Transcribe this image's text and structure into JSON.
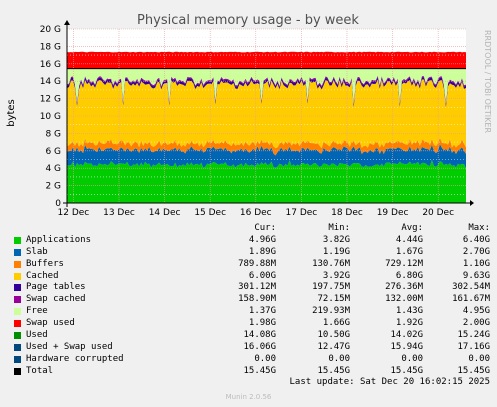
{
  "chart_data": {
    "type": "area",
    "title": "Physical memory usage - by week",
    "ylabel": "bytes",
    "side_label": "RRDTOOL / TOBI OETIKER",
    "ylim": [
      0,
      20
    ],
    "y_unit": "G",
    "y_ticks": [
      "0",
      "2 G",
      "4 G",
      "6 G",
      "8 G",
      "10 G",
      "12 G",
      "14 G",
      "16 G",
      "18 G",
      "20 G"
    ],
    "x_labels": [
      "12 Dec",
      "13 Dec",
      "14 Dec",
      "15 Dec",
      "16 Dec",
      "17 Dec",
      "18 Dec",
      "19 Dec",
      "20 Dec"
    ],
    "approx_series_G": {
      "applications": 4.4,
      "slab": 1.7,
      "buffers": 0.73,
      "cached": 6.8,
      "page_tables": 0.28,
      "swap_cached": 0.13,
      "free": 1.4,
      "swap_used": 1.9,
      "total": 15.45
    },
    "colors": {
      "applications": "#00cc00",
      "slab": "#0066b3",
      "buffers": "#ff8000",
      "cached": "#ffcc00",
      "page_tables": "#330099",
      "swap_cached": "#990099",
      "free": "#ccff99",
      "swap_used": "#ff0000",
      "used": "#008f00",
      "used_swap": "#00487d",
      "hardware_corrupted": "#00487d",
      "total": "#000000"
    }
  },
  "legend": {
    "headers": {
      "cur": "Cur:",
      "min": "Min:",
      "avg": "Avg:",
      "max": "Max:"
    },
    "rows": [
      {
        "name": "Applications",
        "color": "#00cc00",
        "cur": "4.96G",
        "min": "3.82G",
        "avg": "4.44G",
        "max": "6.40G"
      },
      {
        "name": "Slab",
        "color": "#0066b3",
        "cur": "1.89G",
        "min": "1.19G",
        "avg": "1.67G",
        "max": "2.70G"
      },
      {
        "name": "Buffers",
        "color": "#ff8000",
        "cur": "789.88M",
        "min": "130.76M",
        "avg": "729.12M",
        "max": "1.10G"
      },
      {
        "name": "Cached",
        "color": "#ffcc00",
        "cur": "6.00G",
        "min": "3.92G",
        "avg": "6.80G",
        "max": "9.63G"
      },
      {
        "name": "Page tables",
        "color": "#330099",
        "cur": "301.12M",
        "min": "197.75M",
        "avg": "276.36M",
        "max": "302.54M"
      },
      {
        "name": "Swap cached",
        "color": "#990099",
        "cur": "158.90M",
        "min": "72.15M",
        "avg": "132.00M",
        "max": "161.67M"
      },
      {
        "name": "Free",
        "color": "#ccff99",
        "cur": "1.37G",
        "min": "219.93M",
        "avg": "1.43G",
        "max": "4.95G"
      },
      {
        "name": "Swap used",
        "color": "#ff0000",
        "cur": "1.98G",
        "min": "1.66G",
        "avg": "1.92G",
        "max": "2.00G"
      },
      {
        "name": "Used",
        "color": "#008f00",
        "cur": "14.08G",
        "min": "10.50G",
        "avg": "14.02G",
        "max": "15.24G"
      },
      {
        "name": "Used + Swap used",
        "color": "#00487d",
        "cur": "16.06G",
        "min": "12.47G",
        "avg": "15.94G",
        "max": "17.16G"
      },
      {
        "name": "Hardware corrupted",
        "color": "#00487d",
        "cur": "0.00",
        "min": "0.00",
        "avg": "0.00",
        "max": "0.00"
      },
      {
        "name": "Total",
        "color": "#000000",
        "cur": "15.45G",
        "min": "15.45G",
        "avg": "15.45G",
        "max": "15.45G"
      }
    ]
  },
  "last_update": "Last update: Sat Dec 20 16:02:15 2025",
  "footer": "Munin 2.0.56"
}
